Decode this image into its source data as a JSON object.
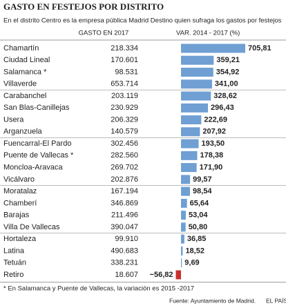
{
  "chart_data": {
    "type": "bar",
    "orientation": "horizontal",
    "title": "GASTO EN FESTEJOS POR DISTRITO",
    "subtitle": "En el distrito Centro es la empresa pública Madrid Destino quien sufraga los gastos por festejos",
    "categories": [
      "Chamartín",
      "Ciudad Lineal",
      "Salamanca *",
      "Villaverde",
      "Carabanchel",
      "San Blas-Canillejas",
      "Usera",
      "Arganzuela",
      "Fuencarral-El Pardo",
      "Puente de Vallecas *",
      "Moncloa-Aravaca",
      "Vicálvaro",
      "Moratalaz",
      "Chamberí",
      "Barajas",
      "Villa De Vallecas",
      "Hortaleza",
      "Latina",
      "Tetuán",
      "Retiro"
    ],
    "spending": {
      "name": "GASTO EN 2017",
      "values": [
        218334,
        170601,
        98531,
        653714,
        203119,
        230929,
        206329,
        140579,
        302456,
        282560,
        269702,
        202876,
        167194,
        346869,
        211496,
        390047,
        99910,
        490683,
        338231,
        18607
      ],
      "value_labels": [
        "218.334",
        "170.601",
        "98.531",
        "653.714",
        "203.119",
        "230.929",
        "206.329",
        "140.579",
        "302.456",
        "282.560",
        "269.702",
        "202.876",
        "167.194",
        "346.869",
        "211.496",
        "390.047",
        "99.910",
        "490.683",
        "338.231",
        "18.607"
      ]
    },
    "series": [
      {
        "name": "VAR. 2014 - 2017 (%)",
        "color": "#6f9fd3",
        "negative_color": "#c8302c",
        "values": [
          705.81,
          359.21,
          354.92,
          341.0,
          328.62,
          296.43,
          222.69,
          207.92,
          193.5,
          178.38,
          171.9,
          99.57,
          98.54,
          65.64,
          53.04,
          50.8,
          36.85,
          18.52,
          9.69,
          -56.82
        ],
        "value_labels": [
          "705,81",
          "359,21",
          "354,92",
          "341,00",
          "328,62",
          "296,43",
          "222,69",
          "207,92",
          "193,50",
          "178,38",
          "171,90",
          "99,57",
          "98,54",
          "65,64",
          "53,04",
          "50,80",
          "36,85",
          "18,52",
          "9,69",
          "−56,82"
        ]
      }
    ],
    "footnote": "* En Salamanca y Puente de Vallecas, la variación es 2015 -2017",
    "source": "Fuente: Ayuntamiento de Madrid.",
    "brand": "EL PAÍS"
  }
}
